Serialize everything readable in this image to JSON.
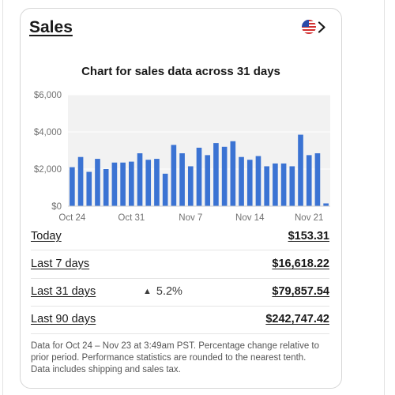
{
  "card": {
    "title": "Sales",
    "flag_icon": "us-flag-icon",
    "chevron_icon": "chevron-right-icon"
  },
  "chart_title": "Chart for sales data across 31 days",
  "chart_data": {
    "type": "bar",
    "title": "Chart for sales data across 31 days",
    "xlabel": "",
    "ylabel": "",
    "ylim": [
      0,
      6000
    ],
    "yticks": [
      "$0",
      "$2,000",
      "$4,000",
      "$6,000"
    ],
    "ytick_values": [
      0,
      2000,
      4000,
      6000
    ],
    "xtick_labels": [
      "Oct 24",
      "Oct 31",
      "Nov 7",
      "Nov 14",
      "Nov 21"
    ],
    "xtick_indices": [
      0,
      7,
      14,
      21,
      28
    ],
    "categories": [
      "Oct 24",
      "Oct 25",
      "Oct 26",
      "Oct 27",
      "Oct 28",
      "Oct 29",
      "Oct 30",
      "Oct 31",
      "Nov 1",
      "Nov 2",
      "Nov 3",
      "Nov 4",
      "Nov 5",
      "Nov 6",
      "Nov 7",
      "Nov 8",
      "Nov 9",
      "Nov 10",
      "Nov 11",
      "Nov 12",
      "Nov 13",
      "Nov 14",
      "Nov 15",
      "Nov 16",
      "Nov 17",
      "Nov 18",
      "Nov 19",
      "Nov 20",
      "Nov 21",
      "Nov 22",
      "Nov 23"
    ],
    "values": [
      2100,
      2650,
      1850,
      2550,
      2000,
      2350,
      2350,
      2400,
      2850,
      2500,
      2550,
      1750,
      3300,
      2850,
      2150,
      3150,
      2750,
      3400,
      3200,
      3500,
      2650,
      2500,
      2700,
      2150,
      2300,
      2300,
      2150,
      3850,
      2750,
      2850,
      150
    ],
    "bar_color": "#3b73d3",
    "plot_background": "#f2f2f2",
    "grid": true
  },
  "rows": [
    {
      "label": "Today",
      "value": "$153.31",
      "change": ""
    },
    {
      "label": "Last 7 days",
      "value": "$16,618.22",
      "change": ""
    },
    {
      "label": "Last 31 days",
      "value": "$79,857.54",
      "change": "5.2%",
      "change_icon": "triangle-up-icon"
    },
    {
      "label": "Last 90 days",
      "value": "$242,747.42",
      "change": ""
    }
  ],
  "footnote": "Data for Oct 24 – Nov 23 at 3:49am PST. Percentage change relative to prior period. Performance statistics are rounded to the nearest tenth. Data includes shipping and sales tax."
}
